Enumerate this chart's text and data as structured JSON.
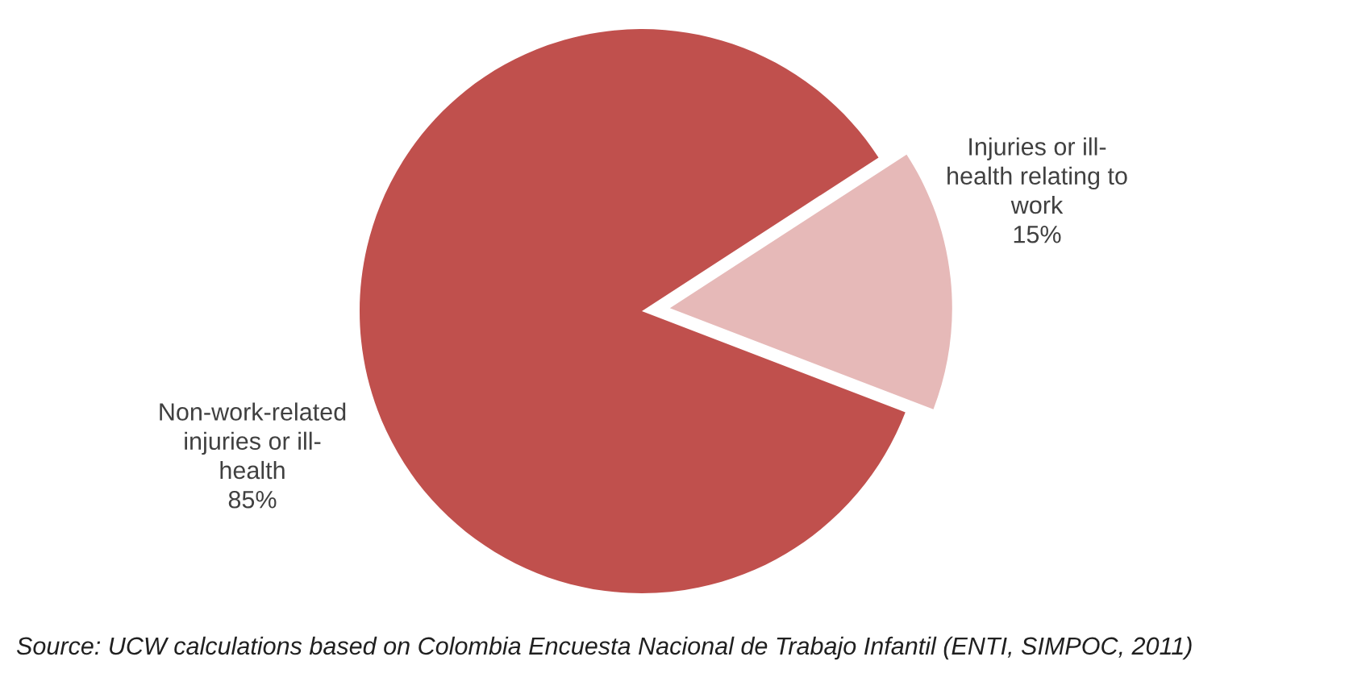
{
  "chart_data": {
    "type": "pie",
    "categories": [
      "Injuries or ill-\nhealth relating to\nwork",
      "Non-work-related\ninjuries or ill-\nhealth"
    ],
    "values": [
      15,
      85
    ],
    "colors": [
      "#e6b9b8",
      "#c0504d"
    ],
    "value_labels": [
      "15%",
      "85%"
    ],
    "annotations": [
      "Source: UCW calculations based on Colombia Encuesta Nacional de Trabajo Infantil (ENTI, SIMPOC, 2011)"
    ],
    "legend": false
  }
}
